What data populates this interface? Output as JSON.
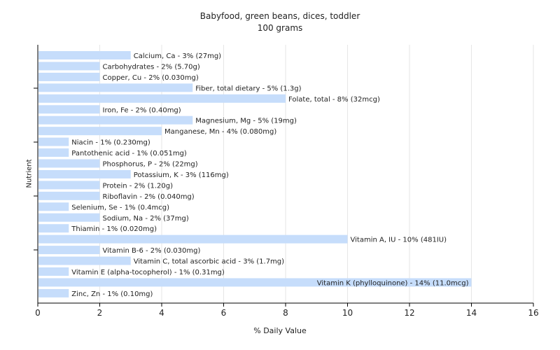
{
  "chart_data": {
    "type": "bar",
    "orientation": "horizontal",
    "title": "Babyfood, green beans, dices, toddler",
    "subtitle": "100 grams",
    "xlabel": "% Daily Value",
    "ylabel": "Nutrient",
    "xlim": [
      0,
      16
    ],
    "xticks": [
      0,
      2,
      4,
      6,
      8,
      10,
      12,
      14,
      16
    ],
    "grid": true,
    "bar_color": "#c6ddfb",
    "categories": [
      "Calcium, Ca",
      "Carbohydrates",
      "Copper, Cu",
      "Fiber, total dietary",
      "Folate, total",
      "Iron, Fe",
      "Magnesium, Mg",
      "Manganese, Mn",
      "Niacin",
      "Pantothenic acid",
      "Phosphorus, P",
      "Potassium, K",
      "Protein",
      "Riboflavin",
      "Selenium, Se",
      "Sodium, Na",
      "Thiamin",
      "Vitamin A, IU",
      "Vitamin B-6",
      "Vitamin C, total ascorbic acid",
      "Vitamin E (alpha-tocopherol)",
      "Vitamin K (phylloquinone)",
      "Zinc, Zn"
    ],
    "values": [
      3,
      2,
      2,
      5,
      8,
      2,
      5,
      4,
      1,
      1,
      2,
      3,
      2,
      2,
      1,
      2,
      1,
      10,
      2,
      3,
      1,
      14,
      1
    ],
    "labels": [
      "Calcium, Ca - 3% (27mg)",
      "Carbohydrates - 2% (5.70g)",
      "Copper, Cu - 2% (0.030mg)",
      "Fiber, total dietary - 5% (1.3g)",
      "Folate, total - 8% (32mcg)",
      "Iron, Fe - 2% (0.40mg)",
      "Magnesium, Mg - 5% (19mg)",
      "Manganese, Mn - 4% (0.080mg)",
      "Niacin - 1% (0.230mg)",
      "Pantothenic acid - 1% (0.051mg)",
      "Phosphorus, P - 2% (22mg)",
      "Potassium, K - 3% (116mg)",
      "Protein - 2% (1.20g)",
      "Riboflavin - 2% (0.040mg)",
      "Selenium, Se - 1% (0.4mcg)",
      "Sodium, Na - 2% (37mg)",
      "Thiamin - 1% (0.020mg)",
      "Vitamin A, IU - 10% (481IU)",
      "Vitamin B-6 - 2% (0.030mg)",
      "Vitamin C, total ascorbic acid - 3% (1.7mg)",
      "Vitamin E (alpha-tocopherol) - 1% (0.31mg)",
      "Vitamin K (phylloquinone) - 14% (11.0mcg)",
      "Zinc, Zn - 1% (0.10mg)"
    ]
  }
}
